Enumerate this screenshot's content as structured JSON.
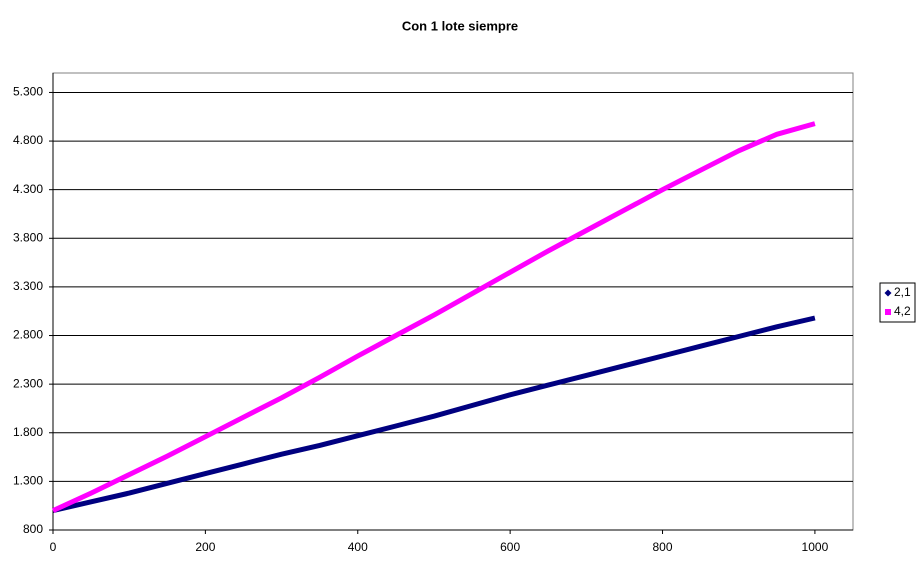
{
  "chart_data": {
    "type": "line",
    "title": "Con 1 lote siempre",
    "x": [
      0,
      50,
      100,
      150,
      200,
      250,
      300,
      350,
      400,
      450,
      500,
      550,
      600,
      650,
      700,
      750,
      800,
      850,
      900,
      950,
      1000
    ],
    "series": [
      {
        "name": "2,1",
        "color": "#000080",
        "marker": "diamond",
        "values": [
          1000,
          1090,
          1180,
          1280,
          1380,
          1480,
          1580,
          1670,
          1770,
          1870,
          1970,
          2080,
          2190,
          2290,
          2390,
          2490,
          2590,
          2690,
          2790,
          2890,
          2980
        ]
      },
      {
        "name": "4,2",
        "color": "#ff00ff",
        "marker": "square",
        "values": [
          1000,
          1180,
          1370,
          1560,
          1760,
          1960,
          2160,
          2370,
          2590,
          2800,
          3010,
          3230,
          3450,
          3670,
          3880,
          4090,
          4300,
          4500,
          4700,
          4870,
          4980
        ]
      }
    ],
    "xlim": [
      0,
      1050
    ],
    "xticks": [
      0,
      200,
      400,
      600,
      800,
      1000
    ],
    "ylim": [
      800,
      5500
    ],
    "yticks": [
      800,
      {
        "value": 1300,
        "label": "1.300"
      },
      {
        "value": 1800,
        "label": "1.800"
      },
      {
        "value": 2300,
        "label": "2.300"
      },
      {
        "value": 2800,
        "label": "2.800"
      },
      {
        "value": 3300,
        "label": "3.300"
      },
      {
        "value": 3800,
        "label": "3.800"
      },
      {
        "value": 4300,
        "label": "4.300"
      },
      {
        "value": 4800,
        "label": "4.800"
      },
      {
        "value": 5300,
        "label": "5.300"
      }
    ],
    "grid": true,
    "legend": "right"
  }
}
